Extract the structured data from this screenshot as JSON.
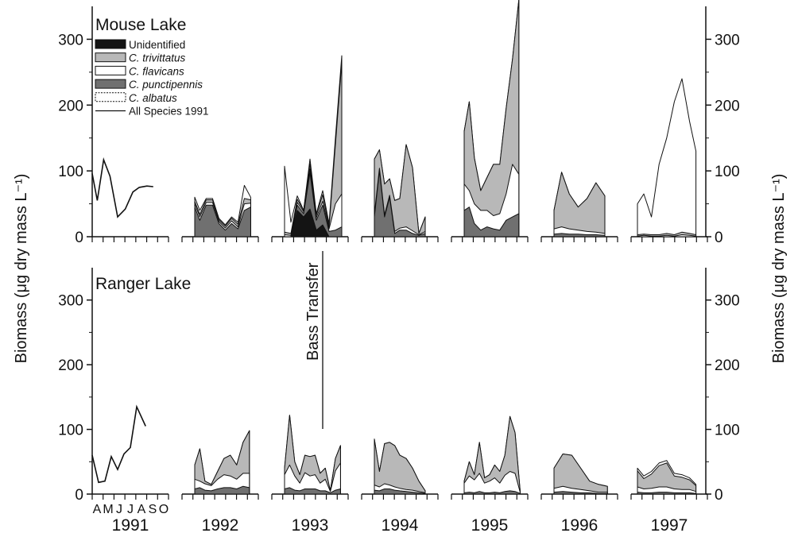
{
  "chart_data": {
    "type": "area",
    "ylabel": "Biomass  (μg dry mass L⁻¹)",
    "ylim": [
      0,
      350
    ],
    "yticks": [
      0,
      100,
      200,
      300
    ],
    "years": [
      "1991",
      "1992",
      "1993",
      "1994",
      "1995",
      "1996",
      "1997"
    ],
    "month_labels_1991": "AMJJASO",
    "legend": [
      "Unidentified",
      "C. trivittatus",
      "C. flavicans",
      "C. punctipennis",
      "C. albatus",
      "All Species 1991"
    ],
    "legend_italic": [
      false,
      true,
      true,
      true,
      true,
      false
    ],
    "stack_order": [
      "Unidentified",
      "C. punctipennis",
      "C. flavicans",
      "C. trivittatus",
      "C. albatus"
    ],
    "colors": {
      "Unidentified": "#141414",
      "C. punctipennis": "#707070",
      "C. flavicans": "#ffffff",
      "C. trivittatus": "#b8b8b8",
      "C. albatus": "#ffffff",
      "outline": "#111111"
    },
    "annotation": {
      "text": "Bass Transfer",
      "year": "1993",
      "month": 8.0
    },
    "panels": [
      {
        "name": "Mouse Lake",
        "all_species_1991": {
          "months": [
            4.0,
            4.4,
            4.9,
            5.4,
            6.0,
            6.6,
            7.2,
            7.7,
            8.3,
            8.8
          ],
          "values": [
            96,
            55,
            117,
            92,
            30,
            42,
            68,
            75,
            77,
            76
          ]
        },
        "years": [
          {
            "year": "1992",
            "months": [
              5.0,
              5.4,
              5.9,
              6.4,
              6.9,
              7.4,
              7.9,
              8.4,
              8.9,
              9.4
            ],
            "totals": [
              60,
              40,
              58,
              58,
              28,
              18,
              30,
              22,
              78,
              60
            ],
            "unidentified": [
              0,
              0,
              0,
              0,
              0,
              0,
              0,
              0,
              0,
              0
            ],
            "punctipennis": [
              45,
              25,
              48,
              48,
              20,
              10,
              20,
              12,
              40,
              45
            ],
            "flavicans": [
              5,
              5,
              4,
              4,
              3,
              3,
              4,
              3,
              10,
              6
            ],
            "trivittatus": [
              4,
              4,
              4,
              4,
              3,
              3,
              4,
              4,
              8,
              5
            ]
          },
          {
            "year": "1993",
            "months": [
              5.0,
              5.5,
              6.0,
              6.5,
              7.0,
              7.5,
              8.0,
              8.5,
              9.0,
              9.5
            ],
            "totals": [
              107,
              22,
              62,
              40,
              118,
              35,
              70,
              20,
              150,
              275
            ],
            "unidentified": [
              0,
              0,
              40,
              30,
              42,
              10,
              18,
              0,
              0,
              0
            ],
            "punctipennis": [
              0,
              0,
              8,
              5,
              55,
              15,
              30,
              8,
              10,
              15
            ],
            "flavicans": [
              3,
              2,
              4,
              3,
              6,
              4,
              6,
              4,
              40,
              50
            ],
            "trivittatus": [
              4,
              3,
              5,
              2,
              8,
              4,
              10,
              3,
              90,
              200
            ]
          },
          {
            "year": "1994",
            "months": [
              5.0,
              5.4,
              5.8,
              6.2,
              6.6,
              7.0,
              7.5,
              8.0,
              8.5,
              9.0
            ],
            "totals": [
              118,
              132,
              80,
              88,
              55,
              58,
              140,
              105,
              5,
              30
            ],
            "unidentified": [
              0,
              0,
              0,
              0,
              0,
              0,
              0,
              0,
              0,
              0
            ],
            "punctipennis": [
              30,
              100,
              30,
              60,
              5,
              10,
              10,
              5,
              2,
              5
            ],
            "flavicans": [
              4,
              4,
              3,
              3,
              3,
              3,
              5,
              4,
              1,
              3
            ],
            "trivittatus": [
              84,
              28,
              47,
              25,
              47,
              45,
              125,
              96,
              2,
              22
            ]
          },
          {
            "year": "1995",
            "months": [
              5.0,
              5.4,
              5.8,
              6.3,
              6.8,
              7.3,
              7.8,
              8.3,
              8.8,
              9.3
            ],
            "totals": [
              160,
              205,
              120,
              70,
              90,
              110,
              110,
              195,
              270,
              360
            ],
            "unidentified": [
              0,
              0,
              0,
              0,
              0,
              0,
              0,
              0,
              0,
              0
            ],
            "punctipennis": [
              40,
              45,
              20,
              10,
              15,
              12,
              10,
              25,
              30,
              35
            ],
            "flavicans": [
              40,
              25,
              30,
              30,
              25,
              20,
              25,
              40,
              80,
              60
            ],
            "trivittatus": [
              80,
              135,
              70,
              30,
              50,
              78,
              75,
              130,
              160,
              265
            ]
          },
          {
            "year": "1996",
            "months": [
              5.0,
              5.6,
              6.2,
              6.9,
              7.6,
              8.3,
              9.0
            ],
            "totals": [
              40,
              98,
              65,
              45,
              58,
              82,
              62
            ],
            "unidentified": [
              0,
              0,
              0,
              0,
              0,
              0,
              0
            ],
            "punctipennis": [
              4,
              5,
              4,
              4,
              3,
              3,
              2
            ],
            "flavicans": [
              8,
              10,
              8,
              6,
              5,
              4,
              3
            ],
            "trivittatus": [
              28,
              83,
              53,
              35,
              50,
              75,
              57
            ]
          },
          {
            "year": "1997",
            "months": [
              4.5,
              5.0,
              5.6,
              6.2,
              6.8,
              7.4,
              8.0,
              8.6,
              9.1
            ],
            "totals": [
              50,
              65,
              30,
              110,
              150,
              205,
              240,
              175,
              130
            ],
            "unidentified": [
              0,
              0,
              0,
              0,
              0,
              0,
              0,
              0,
              0
            ],
            "punctipennis": [
              0,
              0,
              0,
              0,
              0,
              0,
              0,
              0,
              0
            ],
            "flavicans": [
              1,
              2,
              1,
              1,
              2,
              1,
              3,
              2,
              1
            ],
            "trivittatus": [
              2,
              2,
              2,
              2,
              3,
              2,
              4,
              3,
              2
            ]
          }
        ]
      },
      {
        "name": "Ranger Lake",
        "all_species_1991": {
          "months": [
            4.0,
            4.5,
            5.0,
            5.5,
            6.0,
            6.5,
            7.0,
            7.5,
            8.2
          ],
          "values": [
            60,
            18,
            20,
            58,
            38,
            62,
            72,
            135,
            105
          ]
        },
        "years": [
          {
            "year": "1992",
            "months": [
              5.0,
              5.4,
              5.8,
              6.3,
              6.8,
              7.3,
              7.8,
              8.3,
              8.8,
              9.3
            ],
            "totals": [
              45,
              70,
              20,
              15,
              35,
              55,
              60,
              45,
              80,
              98
            ],
            "unidentified": [
              0,
              0,
              0,
              0,
              0,
              0,
              0,
              0,
              0,
              0
            ],
            "punctipennis": [
              8,
              10,
              6,
              5,
              8,
              10,
              10,
              8,
              12,
              10
            ],
            "flavicans": [
              15,
              10,
              10,
              8,
              15,
              20,
              18,
              15,
              20,
              22
            ],
            "trivittatus": [
              22,
              50,
              4,
              2,
              12,
              25,
              32,
              22,
              48,
              66
            ]
          },
          {
            "year": "1993",
            "months": [
              5.0,
              5.4,
              5.8,
              6.2,
              6.6,
              7.0,
              7.4,
              7.8,
              8.2,
              8.6,
              9.0,
              9.4
            ],
            "totals": [
              40,
              122,
              50,
              30,
              60,
              58,
              60,
              32,
              40,
              5,
              55,
              75
            ],
            "unidentified": [
              0,
              0,
              0,
              0,
              0,
              0,
              0,
              0,
              0,
              0,
              0,
              0
            ],
            "punctipennis": [
              8,
              10,
              6,
              5,
              8,
              8,
              8,
              5,
              5,
              2,
              6,
              8
            ],
            "flavicans": [
              22,
              35,
              22,
              12,
              25,
              20,
              22,
              12,
              18,
              2,
              30,
              40
            ],
            "trivittatus": [
              10,
              77,
              22,
              13,
              27,
              30,
              30,
              15,
              17,
              1,
              19,
              27
            ]
          },
          {
            "year": "1994",
            "months": [
              5.0,
              5.4,
              5.8,
              6.2,
              6.6,
              7.0,
              7.5,
              8.0,
              8.5,
              9.0
            ],
            "totals": [
              85,
              35,
              78,
              80,
              75,
              60,
              55,
              40,
              20,
              5
            ],
            "unidentified": [
              0,
              0,
              0,
              0,
              0,
              0,
              0,
              0,
              0,
              0
            ],
            "punctipennis": [
              6,
              5,
              8,
              8,
              6,
              5,
              4,
              3,
              2,
              1
            ],
            "flavicans": [
              8,
              6,
              8,
              6,
              5,
              4,
              3,
              3,
              2,
              1
            ],
            "trivittatus": [
              71,
              24,
              62,
              66,
              64,
              51,
              48,
              34,
              16,
              3
            ]
          },
          {
            "year": "1995",
            "months": [
              5.0,
              5.4,
              5.8,
              6.2,
              6.6,
              7.0,
              7.4,
              7.8,
              8.2,
              8.6,
              9.0,
              9.4
            ],
            "totals": [
              20,
              50,
              30,
              80,
              25,
              30,
              45,
              35,
              60,
              120,
              95,
              5
            ],
            "unidentified": [
              0,
              0,
              0,
              0,
              0,
              0,
              0,
              0,
              0,
              0,
              0,
              0
            ],
            "punctipennis": [
              2,
              3,
              2,
              4,
              2,
              2,
              3,
              2,
              4,
              5,
              4,
              1
            ],
            "flavicans": [
              15,
              25,
              20,
              28,
              15,
              18,
              22,
              15,
              25,
              30,
              28,
              2
            ],
            "trivittatus": [
              3,
              22,
              8,
              48,
              8,
              10,
              20,
              18,
              31,
              85,
              63,
              2
            ]
          },
          {
            "year": "1996",
            "months": [
              5.0,
              5.7,
              6.4,
              7.1,
              7.8,
              8.5,
              9.2
            ],
            "totals": [
              40,
              62,
              60,
              40,
              20,
              15,
              12
            ],
            "unidentified": [
              0,
              0,
              0,
              0,
              0,
              0,
              0
            ],
            "punctipennis": [
              3,
              4,
              3,
              2,
              2,
              1,
              1
            ],
            "flavicans": [
              6,
              8,
              6,
              5,
              3,
              2,
              2
            ],
            "trivittatus": [
              31,
              50,
              51,
              33,
              15,
              12,
              9
            ]
          },
          {
            "year": "1997",
            "months": [
              4.5,
              5.0,
              5.6,
              6.2,
              6.8,
              7.4,
              8.0,
              8.6,
              9.1
            ],
            "totals": [
              40,
              28,
              35,
              48,
              52,
              32,
              30,
              25,
              15
            ],
            "unidentified": [
              0,
              0,
              0,
              0,
              0,
              0,
              0,
              0,
              0
            ],
            "punctipennis": [
              3,
              2,
              2,
              3,
              3,
              2,
              2,
              2,
              1
            ],
            "flavicans": [
              8,
              6,
              7,
              8,
              8,
              6,
              5,
              5,
              3
            ],
            "trivittatus": [
              25,
              16,
              22,
              33,
              37,
              20,
              19,
              15,
              9
            ]
          }
        ]
      }
    ]
  }
}
